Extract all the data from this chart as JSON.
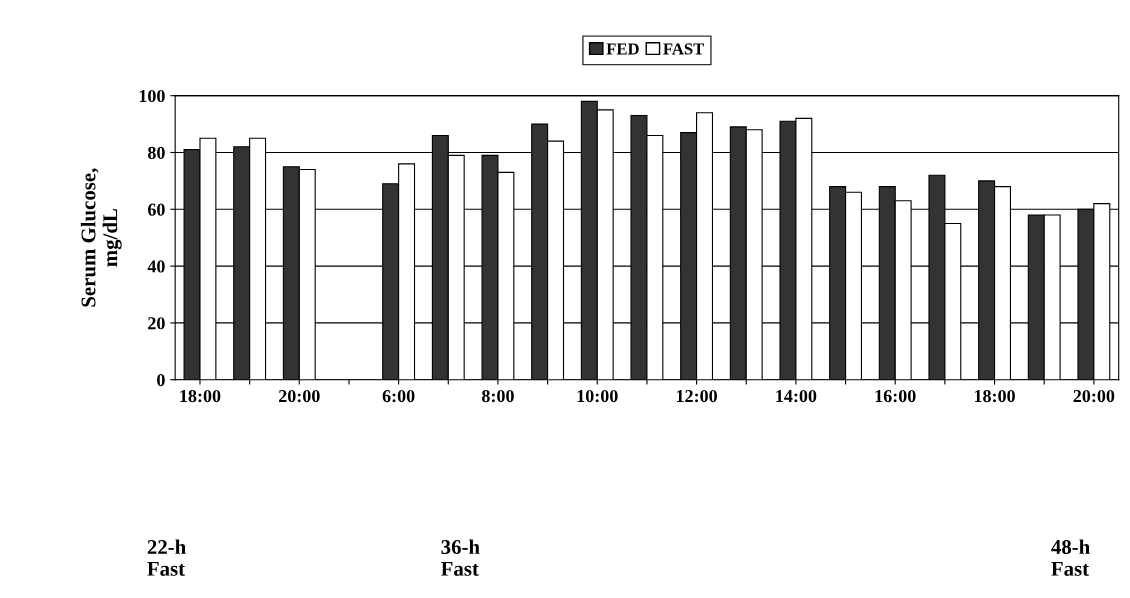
{
  "chart_data": {
    "type": "bar",
    "ylabel": "Serum Glucose,\nmg/dL",
    "categories": [
      "18:00",
      null,
      "20:00",
      null,
      "6:00",
      null,
      "8:00",
      null,
      "10:00",
      null,
      "12:00",
      null,
      "14:00",
      null,
      "16:00",
      null,
      "18:00",
      null,
      "20:00"
    ],
    "series": [
      {
        "name": "FED",
        "color": "#333333",
        "values": [
          81,
          82,
          75,
          null,
          69,
          86,
          79,
          90,
          98,
          93,
          87,
          89,
          91,
          68,
          68,
          72,
          70,
          58,
          60
        ]
      },
      {
        "name": "FAST",
        "color": "#ffffff",
        "values": [
          85,
          85,
          74,
          null,
          76,
          79,
          73,
          84,
          95,
          86,
          94,
          88,
          92,
          66,
          63,
          55,
          68,
          58,
          62
        ]
      }
    ],
    "ylim": [
      0,
      100
    ],
    "yticks": [
      0,
      20,
      40,
      60,
      80,
      100
    ],
    "grid": "y",
    "legend": "top",
    "annotations": [
      "22-h\nFast",
      "36-h\nFast",
      "48-h\nFast"
    ]
  }
}
